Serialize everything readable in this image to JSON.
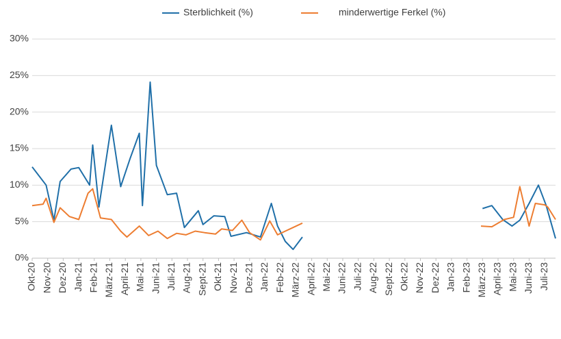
{
  "chart_data": {
    "type": "line",
    "legend": "top",
    "grid": true,
    "xlim": [
      0,
      33.7
    ],
    "xticks": [
      {
        "value": 0,
        "label": "Okt-20"
      },
      {
        "value": 1,
        "label": "Nov-20"
      },
      {
        "value": 2,
        "label": "Dez-20"
      },
      {
        "value": 3,
        "label": "Jan-21"
      },
      {
        "value": 4,
        "label": "Feb-21"
      },
      {
        "value": 5,
        "label": "März-21"
      },
      {
        "value": 6,
        "label": "April-21"
      },
      {
        "value": 7,
        "label": "Mai-21"
      },
      {
        "value": 8,
        "label": "Juni-21"
      },
      {
        "value": 9,
        "label": "Juli-21"
      },
      {
        "value": 10,
        "label": "Aug-21"
      },
      {
        "value": 11,
        "label": "Sept-21"
      },
      {
        "value": 12,
        "label": "Okt-21"
      },
      {
        "value": 13,
        "label": "Nov-21"
      },
      {
        "value": 14,
        "label": "Dez-21"
      },
      {
        "value": 15,
        "label": "Jan-22"
      },
      {
        "value": 16,
        "label": "Feb-22"
      },
      {
        "value": 17,
        "label": "März-22"
      },
      {
        "value": 18,
        "label": "April-22"
      },
      {
        "value": 19,
        "label": "Mai-22"
      },
      {
        "value": 20,
        "label": "Juni-22"
      },
      {
        "value": 21,
        "label": "Juli-22"
      },
      {
        "value": 22,
        "label": "Aug-22"
      },
      {
        "value": 23,
        "label": "Sept-22"
      },
      {
        "value": 24,
        "label": "Okt-22"
      },
      {
        "value": 25,
        "label": "Nov-22"
      },
      {
        "value": 26,
        "label": "Dez-22"
      },
      {
        "value": 27,
        "label": "Jan-23"
      },
      {
        "value": 28,
        "label": "Feb-23"
      },
      {
        "value": 29,
        "label": "März-23"
      },
      {
        "value": 30,
        "label": "April-23"
      },
      {
        "value": 31,
        "label": "Mai-23"
      },
      {
        "value": 32,
        "label": "Juni-23"
      },
      {
        "value": 33,
        "label": "Juli-23"
      }
    ],
    "ylim": [
      0,
      30
    ],
    "yticks": [
      {
        "value": 0,
        "label": "0%"
      },
      {
        "value": 5,
        "label": "5%"
      },
      {
        "value": 10,
        "label": "10%"
      },
      {
        "value": 15,
        "label": "15%"
      },
      {
        "value": 20,
        "label": "20%"
      },
      {
        "value": 25,
        "label": "25%"
      },
      {
        "value": 30,
        "label": "30%"
      }
    ],
    "series": [
      {
        "name": "Sterblichkeit (%)",
        "color": "#1f6fa8",
        "x": [
          0,
          0.9,
          1.4,
          1.8,
          2.5,
          3.0,
          3.7,
          3.9,
          4.3,
          5.1,
          5.7,
          6.3,
          6.9,
          7.1,
          7.6,
          8.0,
          8.7,
          9.3,
          9.8,
          10.7,
          11.0,
          11.7,
          12.4,
          12.8,
          13.8,
          14.7,
          15.4,
          15.8,
          16.3,
          16.8,
          17.4,
          null,
          29.0,
          29.6,
          30.3,
          30.9,
          31.4,
          32.0,
          32.6,
          33.1,
          33.7
        ],
        "values": [
          12.5,
          10.0,
          5.2,
          10.5,
          12.2,
          12.4,
          10.0,
          15.5,
          7.0,
          18.2,
          9.8,
          13.6,
          17.1,
          7.2,
          24.1,
          12.7,
          8.7,
          8.9,
          4.2,
          6.5,
          4.6,
          5.8,
          5.7,
          3.0,
          3.5,
          2.9,
          7.5,
          4.4,
          2.3,
          1.2,
          2.9,
          null,
          6.8,
          7.2,
          5.3,
          4.4,
          5.2,
          7.5,
          10.0,
          7.2,
          2.7
        ]
      },
      {
        "name": "minderwertige Ferkel (%)",
        "color": "#ed7d31",
        "x": [
          0,
          0.7,
          0.9,
          1.4,
          1.8,
          2.4,
          3.0,
          3.6,
          3.9,
          4.4,
          5.1,
          5.7,
          6.1,
          6.9,
          7.5,
          8.1,
          8.7,
          9.3,
          9.9,
          10.5,
          11.1,
          11.8,
          12.2,
          12.9,
          13.5,
          14.0,
          14.7,
          15.3,
          15.8,
          16.3,
          16.8,
          17.4,
          null,
          28.9,
          29.6,
          30.4,
          31.0,
          31.4,
          32.0,
          32.4,
          33.0,
          33.2,
          33.7
        ],
        "values": [
          7.2,
          7.4,
          8.2,
          4.9,
          6.9,
          5.7,
          5.3,
          8.9,
          9.5,
          5.5,
          5.3,
          3.7,
          2.9,
          4.4,
          3.1,
          3.7,
          2.7,
          3.4,
          3.2,
          3.7,
          3.5,
          3.3,
          4.0,
          3.8,
          5.2,
          3.5,
          2.5,
          5.1,
          3.2,
          3.7,
          4.2,
          4.8,
          null,
          4.4,
          4.3,
          5.3,
          5.6,
          9.8,
          4.4,
          7.5,
          7.3,
          7.0,
          5.3
        ]
      }
    ]
  }
}
